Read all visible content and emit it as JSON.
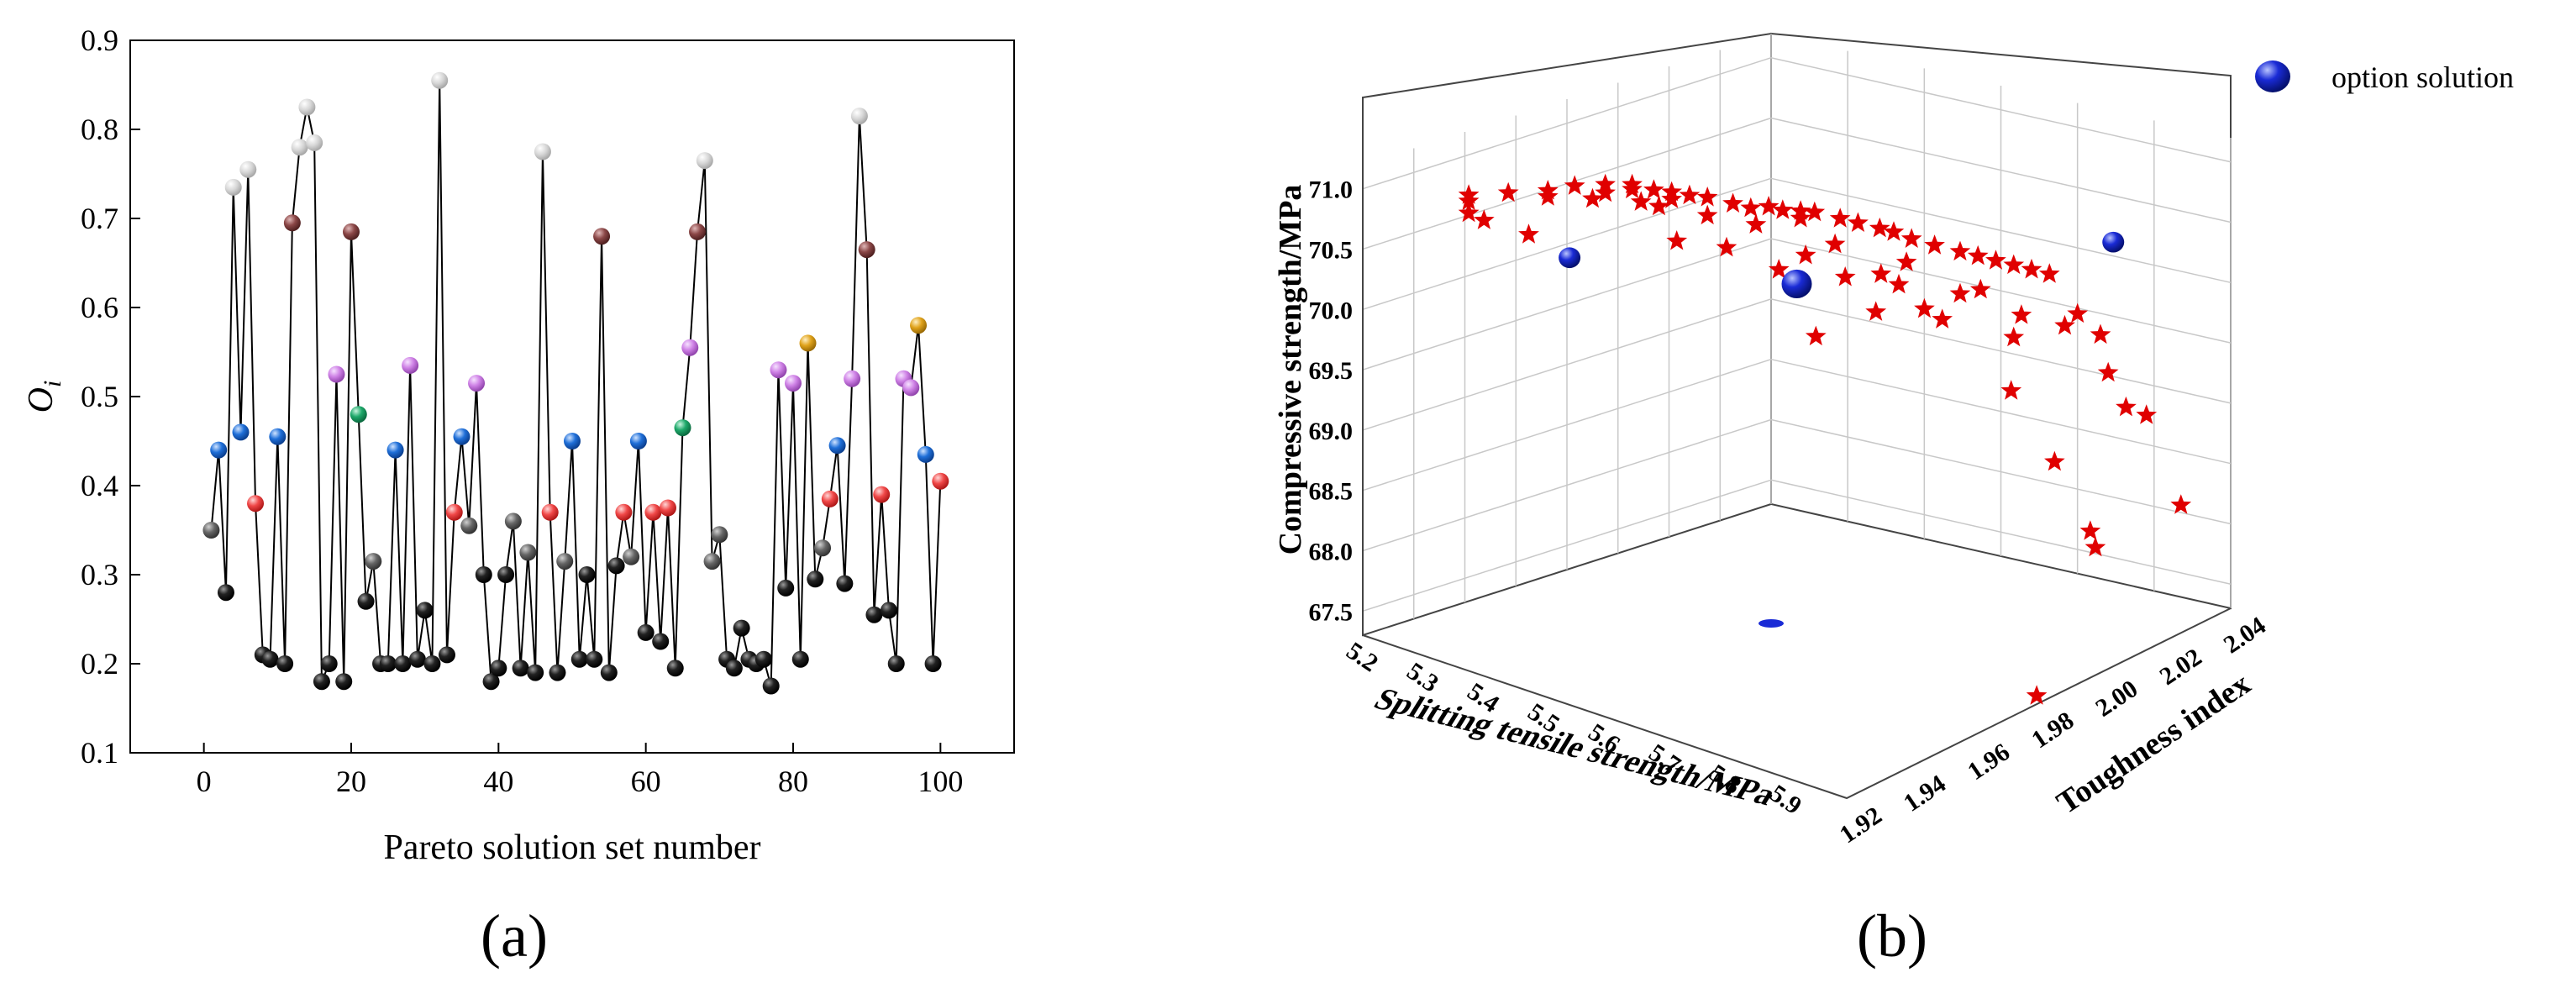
{
  "colors": {
    "black": "#111111",
    "gray_dark": "#555555",
    "gray_light": "#cfcfcf",
    "blue": "#1f6fd8",
    "red": "#f04848",
    "brown": "#8b4747",
    "violet": "#cf82e6",
    "green": "#1ea86a",
    "gold": "#e0a31c",
    "star": "#e00000",
    "option": "#1a2bd6"
  },
  "panel_a": {
    "label": "(a)",
    "chart_data": {
      "type": "line",
      "xlabel": "Pareto solution set number",
      "ylabel_main": "O",
      "ylabel_sub": "i",
      "xlim": [
        -10,
        110
      ],
      "ylim": [
        0.1,
        0.9
      ],
      "x_ticks": [
        "0",
        "20",
        "40",
        "60",
        "80",
        "100"
      ],
      "y_ticks": [
        "0.1",
        "0.2",
        "0.3",
        "0.4",
        "0.5",
        "0.6",
        "0.7",
        "0.8",
        "0.9"
      ],
      "x": [
        1,
        2,
        3,
        4,
        5,
        6,
        7,
        8,
        9,
        10,
        11,
        12,
        13,
        14,
        15,
        16,
        17,
        18,
        19,
        20,
        21,
        22,
        23,
        24,
        25,
        26,
        27,
        28,
        29,
        30,
        31,
        32,
        33,
        34,
        35,
        36,
        37,
        38,
        39,
        40,
        41,
        42,
        43,
        44,
        45,
        46,
        47,
        48,
        49,
        50,
        51,
        52,
        53,
        54,
        55,
        56,
        57,
        58,
        59,
        60,
        61,
        62,
        63,
        64,
        65,
        66,
        67,
        68,
        69,
        70,
        71,
        72,
        73,
        74,
        75,
        76,
        77,
        78,
        79,
        80,
        81,
        82,
        83,
        84,
        85,
        86,
        87,
        88,
        89,
        90,
        91,
        92,
        93,
        94,
        95,
        96,
        97,
        98,
        99,
        100
      ],
      "values": [
        0.35,
        0.44,
        0.28,
        0.735,
        0.46,
        0.755,
        0.38,
        0.21,
        0.205,
        0.455,
        0.2,
        0.695,
        0.78,
        0.825,
        0.785,
        0.18,
        0.2,
        0.525,
        0.18,
        0.685,
        0.48,
        0.27,
        0.315,
        0.2,
        0.2,
        0.44,
        0.2,
        0.535,
        0.205,
        0.26,
        0.2,
        0.855,
        0.21,
        0.37,
        0.455,
        0.355,
        0.515,
        0.3,
        0.18,
        0.195,
        0.3,
        0.36,
        0.195,
        0.325,
        0.19,
        0.775,
        0.37,
        0.19,
        0.315,
        0.45,
        0.205,
        0.3,
        0.205,
        0.68,
        0.19,
        0.31,
        0.37,
        0.32,
        0.45,
        0.235,
        0.37,
        0.225,
        0.375,
        0.195,
        0.465,
        0.555,
        0.685,
        0.765,
        0.315,
        0.345,
        0.205,
        0.195,
        0.24,
        0.205,
        0.2,
        0.205,
        0.175,
        0.53,
        0.285,
        0.515,
        0.205,
        0.56,
        0.295,
        0.33,
        0.385,
        0.445,
        0.29,
        0.52,
        0.815,
        0.665,
        0.255,
        0.39,
        0.26,
        0.2,
        0.52,
        0.51,
        0.58,
        0.435,
        0.2,
        0.405
      ],
      "point_colors": [
        "gray_dark",
        "blue",
        "black",
        "gray_light",
        "blue",
        "gray_light",
        "red",
        "black",
        "black",
        "blue",
        "black",
        "brown",
        "gray_light",
        "gray_light",
        "gray_light",
        "black",
        "black",
        "violet",
        "black",
        "brown",
        "green",
        "black",
        "gray_dark",
        "black",
        "black",
        "blue",
        "black",
        "violet",
        "black",
        "black",
        "black",
        "gray_light",
        "black",
        "red",
        "blue",
        "gray_dark",
        "violet",
        "black",
        "black",
        "black",
        "black",
        "gray_dark",
        "black",
        "gray_dark",
        "black",
        "gray_light",
        "red",
        "black",
        "gray_dark",
        "blue",
        "black",
        "black",
        "black",
        "brown",
        "black",
        "black",
        "red",
        "gray_dark",
        "blue",
        "black",
        "red",
        "black",
        "red",
        "black",
        "green",
        "violet",
        "brown",
        "gray_light",
        "gray_dark",
        "gray_dark",
        "black",
        "black",
        "black",
        "black",
        "black",
        "black",
        "black",
        "violet",
        "black",
        "violet",
        "black",
        "gold",
        "black",
        "gray_dark",
        "red",
        "blue",
        "black",
        "violet",
        "gray_light",
        "brown",
        "black",
        "red",
        "black",
        "black",
        "violet",
        "violet",
        "gold",
        "blue",
        "black",
        "red"
      ]
    }
  },
  "panel_b": {
    "label": "(b)",
    "legend_label": "option solution",
    "chart_data": {
      "type": "scatter",
      "xlabel": "Splitting tensile strength/MPa",
      "ylabel": "Toughness index",
      "zlabel": "Compressive strength/MPa",
      "xlim": [
        5.2,
        6.0
      ],
      "ylim": [
        1.92,
        2.04
      ],
      "zlim": [
        67.3,
        71.2
      ],
      "x_ticks": [
        "5.2",
        "5.3",
        "5.4",
        "5.5",
        "5.6",
        "5.7",
        "5.8",
        "5.9"
      ],
      "y_ticks": [
        "1.92",
        "1.94",
        "1.96",
        "1.98",
        "2.00",
        "2.02",
        "2.04"
      ],
      "z_ticks": [
        "67.5",
        "68.0",
        "68.5",
        "69.0",
        "69.5",
        "70.0",
        "70.5",
        "71.0"
      ],
      "series": [
        {
          "marker": "star",
          "points": [
            [
              5.22,
              1.945,
              71.1
            ],
            [
              5.22,
              1.945,
              71.05
            ],
            [
              5.22,
              1.945,
              70.95
            ],
            [
              5.26,
              1.95,
              71.1
            ],
            [
              5.3,
              1.955,
              71.1
            ],
            [
              5.3,
              1.955,
              71.05
            ],
            [
              5.33,
              1.958,
              71.12
            ],
            [
              5.36,
              1.962,
              71.12
            ],
            [
              5.36,
              1.962,
              71.05
            ],
            [
              5.39,
              1.965,
              71.1
            ],
            [
              5.39,
              1.965,
              71.06
            ],
            [
              5.41,
              1.968,
              71.05
            ],
            [
              5.43,
              1.97,
              71.02
            ],
            [
              5.43,
              1.97,
              70.96
            ],
            [
              5.45,
              1.972,
              70.98
            ],
            [
              5.47,
              1.974,
              70.95
            ],
            [
              5.49,
              1.978,
              70.9
            ],
            [
              5.51,
              1.98,
              70.85
            ],
            [
              5.53,
              1.982,
              70.85
            ],
            [
              5.55,
              1.983,
              70.8
            ],
            [
              5.57,
              1.985,
              70.78
            ],
            [
              5.57,
              1.985,
              70.72
            ],
            [
              5.59,
              1.986,
              70.75
            ],
            [
              5.61,
              1.99,
              70.7
            ],
            [
              5.63,
              1.992,
              70.65
            ],
            [
              5.65,
              1.995,
              70.6
            ],
            [
              5.67,
              1.996,
              70.55
            ],
            [
              5.69,
              1.998,
              70.48
            ],
            [
              5.72,
              2.0,
              70.4
            ],
            [
              5.74,
              2.004,
              70.35
            ],
            [
              5.76,
              2.006,
              70.3
            ],
            [
              5.78,
              2.008,
              70.25
            ],
            [
              5.8,
              2.01,
              70.2
            ],
            [
              5.82,
              2.012,
              70.15
            ],
            [
              5.84,
              2.014,
              70.1
            ],
            [
              5.35,
              1.96,
              71.0
            ],
            [
              5.4,
              1.966,
              70.95
            ],
            [
              5.47,
              1.974,
              70.8
            ],
            [
              5.52,
              1.98,
              70.7
            ],
            [
              5.6,
              1.99,
              70.5
            ],
            [
              5.68,
              1.998,
              70.3
            ],
            [
              5.74,
              2.004,
              70.0
            ],
            [
              5.44,
              1.97,
              70.6
            ],
            [
              5.55,
              1.982,
              70.3
            ],
            [
              5.65,
              1.994,
              69.9
            ],
            [
              5.72,
              2.002,
              69.8
            ],
            [
              5.8,
              2.01,
              69.6
            ],
            [
              5.78,
              2.012,
              69.2
            ],
            [
              5.88,
              2.024,
              69.3
            ],
            [
              5.9,
              2.026,
              69.0
            ],
            [
              5.91,
              2.03,
              68.95
            ],
            [
              5.94,
              2.035,
              68.2
            ],
            [
              5.85,
              2.02,
              69.8
            ],
            [
              5.7,
              2.0,
              69.9
            ],
            [
              5.62,
              1.99,
              70.2
            ],
            [
              5.3,
              1.95,
              70.7
            ],
            [
              5.25,
              1.945,
              70.85
            ],
            [
              5.6,
              1.985,
              69.7
            ],
            [
              5.82,
              2.018,
              68.6
            ],
            [
              5.86,
              2.022,
              68.0
            ],
            [
              5.87,
              2.022,
              67.85
            ],
            [
              5.75,
              2.008,
              70.05
            ],
            [
              5.8,
              2.012,
              69.8
            ],
            [
              5.84,
              2.018,
              69.7
            ],
            [
              5.88,
              2.022,
              69.6
            ],
            [
              5.68,
              1.996,
              70.1
            ],
            [
              5.5,
              1.975,
              70.5
            ],
            [
              5.58,
              1.985,
              70.4
            ],
            [
              5.66,
              1.994,
              70.2
            ],
            [
              5.42,
              1.968,
              70.9
            ]
          ]
        },
        {
          "name": "option solution",
          "marker": "sphere",
          "points": [
            [
              5.38,
              1.95,
              70.4
            ],
            [
              5.6,
              1.98,
              70.1
            ],
            [
              5.92,
              2.02,
              70.3
            ]
          ]
        }
      ]
    }
  }
}
